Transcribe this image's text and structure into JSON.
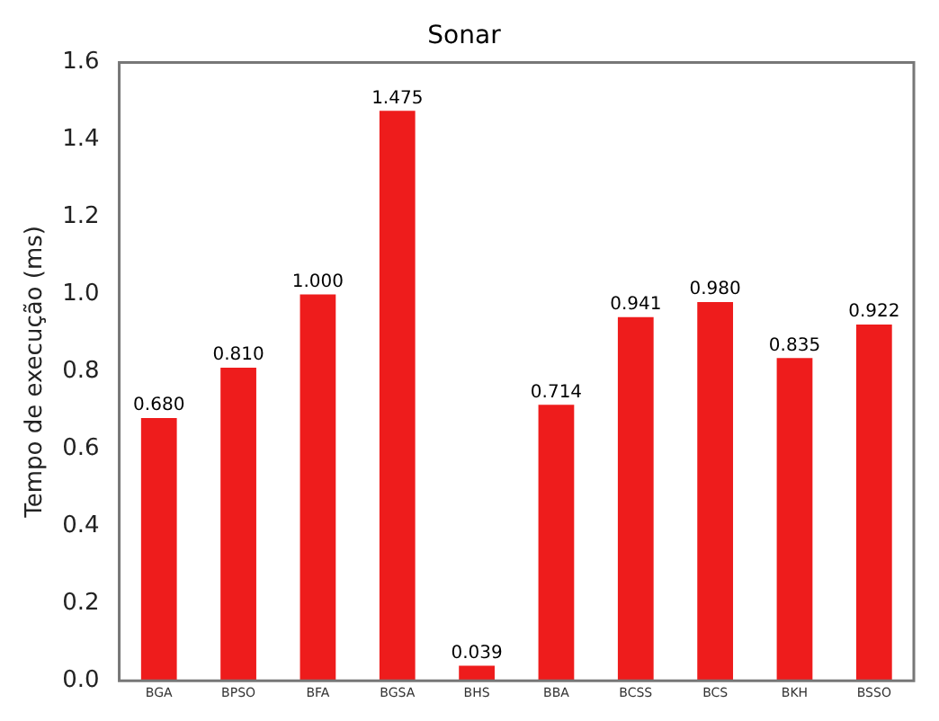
{
  "chart_data": {
    "type": "bar",
    "title": "Sonar",
    "ylabel": "Tempo de execução (ms)",
    "categories": [
      "BGA",
      "BPSO",
      "BFA",
      "BGSA",
      "BHS",
      "BBA",
      "BCSS",
      "BCS",
      "BKH",
      "BSSO"
    ],
    "values": [
      0.68,
      0.81,
      1.0,
      1.475,
      0.039,
      0.714,
      0.941,
      0.98,
      0.835,
      0.922
    ],
    "value_labels": [
      "0.680",
      "0.810",
      "1.000",
      "1.475",
      "0.039",
      "0.714",
      "0.941",
      "0.980",
      "0.835",
      "0.922"
    ],
    "color": "#ee1c1c",
    "ylim": [
      0,
      1.6
    ],
    "yticks": [
      {
        "value": 0,
        "label": "0.0"
      },
      0.2,
      0.4,
      0.6,
      0.8,
      {
        "value": 1,
        "label": "1.0"
      },
      1.2,
      1.4,
      1.6
    ],
    "grid": false,
    "legend": false
  }
}
